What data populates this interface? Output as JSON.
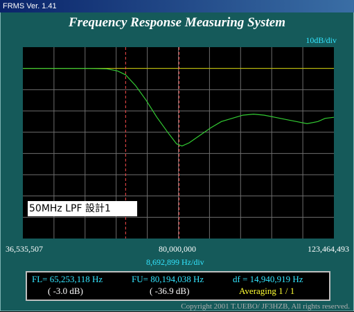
{
  "window": {
    "title": "FRMS   Ver. 1.41"
  },
  "heading": "Frequency Response Measuring System",
  "scale_label": "10dB/div",
  "x_axis": {
    "left": "36,535,507",
    "center": "80,000,000",
    "right": "123,464,493",
    "per_div": "8,692,899  Hz/div"
  },
  "callout": "50MHz  LPF  設計1",
  "readout": {
    "fl": "FL= 65,253,118  Hz",
    "fl_db": "( -3.0 dB)",
    "fu": "FU= 80,194,038  Hz",
    "fu_db": "( -36.9 dB)",
    "df": "df = 14,940,919  Hz",
    "averaging": "Averaging   1 / 1"
  },
  "copyright": "Copyright 2001 T.UEBO/ JF3HZB, All rights reserved.",
  "colors": {
    "background": "#155a5a",
    "plot_bg": "#000000",
    "trace": "#33cc33",
    "reference": "#cccc00",
    "marker": "#ff4d4d"
  },
  "chart_data": {
    "type": "line",
    "x_range": [
      36535507,
      123464493
    ],
    "ylim": [
      -80,
      10
    ],
    "y_units": "dB",
    "grid": true,
    "reference_level": 0,
    "markers": [
      65253118,
      80194038
    ],
    "series": [
      {
        "x": [
          36535507,
          45000000,
          50000000,
          55000000,
          60000000,
          63000000,
          65250000,
          68000000,
          71000000,
          74000000,
          77000000,
          79500000,
          81000000,
          83000000,
          86000000,
          89000000,
          92000000,
          95000000,
          98000000,
          101000000,
          104000000,
          107000000,
          110000000,
          113000000,
          116000000,
          119000000,
          121000000,
          123464493
        ],
        "y": [
          0,
          0,
          0,
          0,
          -0.2,
          -1.2,
          -3,
          -8,
          -15,
          -23,
          -30,
          -35.5,
          -36.5,
          -35,
          -31.5,
          -28,
          -25,
          -23.5,
          -22,
          -21.5,
          -22,
          -23,
          -24,
          -25,
          -26,
          -25,
          -23.5,
          -23
        ]
      }
    ]
  }
}
